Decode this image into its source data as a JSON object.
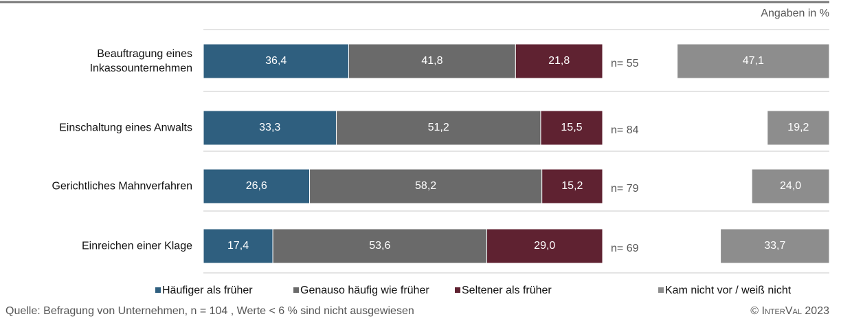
{
  "chart_data": {
    "type": "stacked_bar_horizontal",
    "unit_note": "Angaben in %",
    "categories": [
      "Beauftragung eines\nInkassounternehmen",
      "Einschaltung eines Anwalts",
      "Gerichtliches Mahnverfahren",
      "Einreichen einer Klage"
    ],
    "n_labels": [
      "n= 55",
      "n= 84",
      "n= 79",
      "n= 69"
    ],
    "xlim": [
      0,
      100
    ],
    "x2lim": [
      0,
      100
    ],
    "series": [
      {
        "name": "Häufiger als früher",
        "color": "#2f5f7f",
        "values": [
          36.4,
          33.3,
          26.6,
          17.4
        ],
        "value_labels": [
          "36,4",
          "33,3",
          "26,6",
          "17,4"
        ]
      },
      {
        "name": "Genauso häufig wie früher",
        "color": "#6a6a6a",
        "values": [
          41.8,
          51.2,
          58.2,
          53.6
        ],
        "value_labels": [
          "41,8",
          "51,2",
          "58,2",
          "53,6"
        ]
      },
      {
        "name": "Seltener als früher",
        "color": "#5f2231",
        "values": [
          21.8,
          15.5,
          15.2,
          29.0
        ],
        "value_labels": [
          "21,8",
          "15,5",
          "15,2",
          "29,0"
        ]
      },
      {
        "name": "Kam nicht vor / weiß nicht",
        "color": "#8d8d8d",
        "axis": "x2",
        "values": [
          47.1,
          19.2,
          24.0,
          33.7
        ],
        "value_labels": [
          "47,1",
          "19,2",
          "24,0",
          "33,7"
        ]
      }
    ],
    "source": "Quelle: Befragung von Unternehmen, n = 104 , Werte < 6 % sind nicht ausgewiesen",
    "copyright": "© InterVal 2023"
  }
}
